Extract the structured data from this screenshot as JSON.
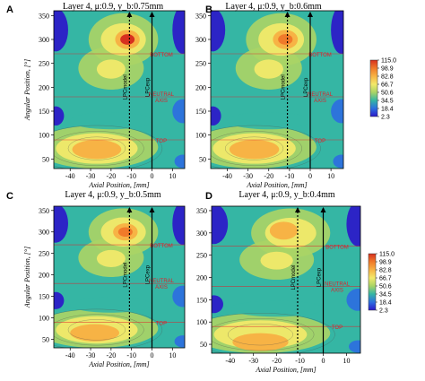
{
  "figure": {
    "colorbar_levels": [
      "115.0",
      "98.9",
      "82.8",
      "66.7",
      "50.6",
      "34.5",
      "18.4",
      "2.3"
    ],
    "colorbar_colors": [
      "#d7301f",
      "#f07a2a",
      "#f7b345",
      "#f3e96a",
      "#a9d466",
      "#35b6a4",
      "#2d6fe0",
      "#2b18c9"
    ],
    "annotation_color": "#e0202a"
  },
  "chart_data": [
    {
      "type": "heatmap",
      "panel_letter": "A",
      "title": "Layer 4, μ:0.9, y_b:0.75mm",
      "xlabel": "Axial Position, [mm]",
      "ylabel": "Angular Position, [°]",
      "xticks": [
        -40,
        -30,
        -20,
        -10,
        0,
        10
      ],
      "yticks": [
        50,
        100,
        150,
        200,
        250,
        300,
        350
      ],
      "xlim": [
        -48,
        16
      ],
      "ylim": [
        30,
        360
      ],
      "zlim": [
        2.3,
        115.0
      ],
      "region_labels": [
        "BOTTOM",
        "NEUTRAL AXIS",
        "TOP"
      ],
      "region_angles": [
        270,
        180,
        90
      ],
      "marker_labels": [
        "LPCmodel",
        "LPCexp"
      ],
      "marker_positions": [
        -11,
        0
      ],
      "hotspots": [
        {
          "x": -12,
          "y": 300,
          "value": 115.0
        },
        {
          "x": -27,
          "y": 70,
          "value": 82.8
        }
      ]
    },
    {
      "type": "heatmap",
      "panel_letter": "B",
      "title": "Layer 4, μ:0.9, y_b:0.6mm",
      "xlabel": "Axial Position, [mm]",
      "ylabel": "",
      "xticks": [
        -40,
        -30,
        -20,
        -10,
        0,
        10
      ],
      "yticks": [
        50,
        100,
        150,
        200,
        250,
        300,
        350
      ],
      "xlim": [
        -48,
        16
      ],
      "ylim": [
        30,
        360
      ],
      "zlim": [
        2.3,
        115.0
      ],
      "region_labels": [
        "BOTTOM",
        "NEUTRAL AXIS",
        "TOP"
      ],
      "region_angles": [
        270,
        180,
        90
      ],
      "marker_labels": [
        "LPCmodel",
        "LPCexp"
      ],
      "marker_positions": [
        -11,
        0
      ],
      "hotspots": [
        {
          "x": -12,
          "y": 300,
          "value": 98.9
        },
        {
          "x": -27,
          "y": 70,
          "value": 82.8
        }
      ]
    },
    {
      "type": "heatmap",
      "panel_letter": "C",
      "title": "Layer 4, μ:0.9, y_b:0.5mm",
      "xlabel": "Axial Position, [mm]",
      "ylabel": "Angular Position, [°]",
      "xticks": [
        -40,
        -30,
        -20,
        -10,
        0,
        10
      ],
      "yticks": [
        50,
        100,
        150,
        200,
        250,
        300,
        350
      ],
      "xlim": [
        -48,
        16
      ],
      "ylim": [
        30,
        360
      ],
      "zlim": [
        2.3,
        115.0
      ],
      "region_labels": [
        "BOTTOM",
        "NEUTRAL AXIS",
        "TOP"
      ],
      "region_angles": [
        270,
        180,
        90
      ],
      "marker_labels": [
        "LPCmodel",
        "LPCexp"
      ],
      "marker_positions": [
        -11,
        0
      ],
      "hotspots": [
        {
          "x": -13,
          "y": 300,
          "value": 98.9
        },
        {
          "x": -28,
          "y": 65,
          "value": 82.8
        }
      ]
    },
    {
      "type": "heatmap",
      "panel_letter": "D",
      "title": "Layer 4, μ:0.9, y_b:0.4mm",
      "xlabel": "Axial Position, [mm]",
      "ylabel": "",
      "xticks": [
        -40,
        -30,
        -20,
        -10,
        0,
        10
      ],
      "yticks": [
        50,
        100,
        150,
        200,
        250,
        300,
        350
      ],
      "xlim": [
        -48,
        16
      ],
      "ylim": [
        30,
        360
      ],
      "zlim": [
        2.3,
        115.0
      ],
      "region_labels": [
        "BOTTOM",
        "NEUTRAL AXIS",
        "TOP"
      ],
      "region_angles": [
        270,
        180,
        90
      ],
      "marker_labels": [
        "LPCmodel",
        "LPCexp"
      ],
      "marker_positions": [
        -11,
        0
      ],
      "hotspots": [
        {
          "x": -17,
          "y": 305,
          "value": 82.8
        },
        {
          "x": -27,
          "y": 55,
          "value": 82.8
        }
      ]
    }
  ]
}
